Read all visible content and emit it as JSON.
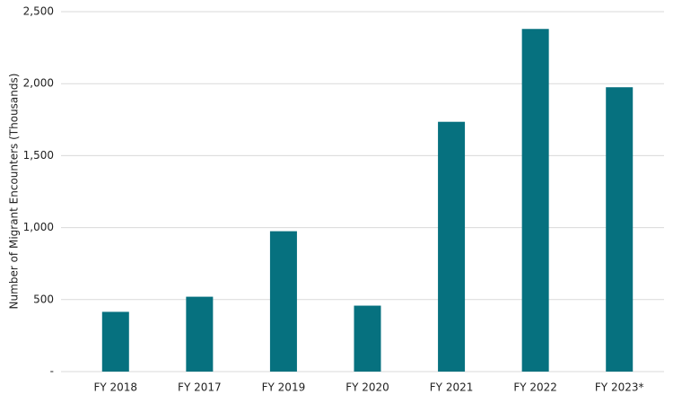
{
  "chart_data": {
    "type": "bar",
    "y_label": "Number of Migrant Encounters (Thousands)",
    "categories": [
      "FY 2018",
      "FY 2017",
      "FY 2019",
      "FY 2020",
      "FY 2021",
      "FY 2022",
      "FY 2023*"
    ],
    "values": [
      415,
      520,
      975,
      458,
      1735,
      2380,
      1975
    ],
    "color": "#06717f",
    "ylim": [
      0,
      2500
    ],
    "yticks": [
      {
        "value": 0,
        "label": "-"
      },
      500,
      {
        "value": 1000,
        "label": "1,000"
      },
      {
        "value": 1500,
        "label": "1,500"
      },
      {
        "value": 2000,
        "label": "2,000"
      },
      {
        "value": 2500,
        "label": "2,500"
      }
    ],
    "grid": true
  }
}
